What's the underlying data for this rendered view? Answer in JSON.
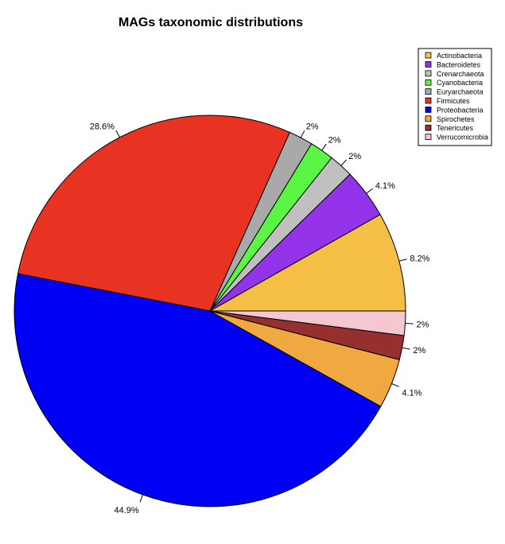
{
  "chart_data": {
    "type": "pie",
    "title": "MAGs taxonomic distributions",
    "legend_position": "top-right",
    "slices": [
      {
        "label": "Actinobacteria",
        "value": 8.2,
        "text": "8.2%",
        "color": "#F5BE45"
      },
      {
        "label": "Bacteroidetes",
        "value": 4.1,
        "text": "4.1%",
        "color": "#9333EA"
      },
      {
        "label": "Crenarchaeota",
        "value": 2,
        "text": "2%",
        "color": "#C0C0C0"
      },
      {
        "label": "Cyanobacteria",
        "value": 2,
        "text": "2%",
        "color": "#5AF545"
      },
      {
        "label": "Euryarchaeota",
        "value": 2,
        "text": "2%",
        "color": "#A9A9A9"
      },
      {
        "label": "Firmicutes",
        "value": 28.6,
        "text": "28.6%",
        "color": "#E83323"
      },
      {
        "label": "Proteobacteria",
        "value": 44.9,
        "text": "44.9%",
        "color": "#0000F5"
      },
      {
        "label": "Spirochetes",
        "value": 4.1,
        "text": "4.1%",
        "color": "#F0A840"
      },
      {
        "label": "Tenericutes",
        "value": 2,
        "text": "2%",
        "color": "#96302E"
      },
      {
        "label": "Verrucomicrobia",
        "value": 2,
        "text": "2%",
        "color": "#F5C7D0"
      }
    ]
  }
}
